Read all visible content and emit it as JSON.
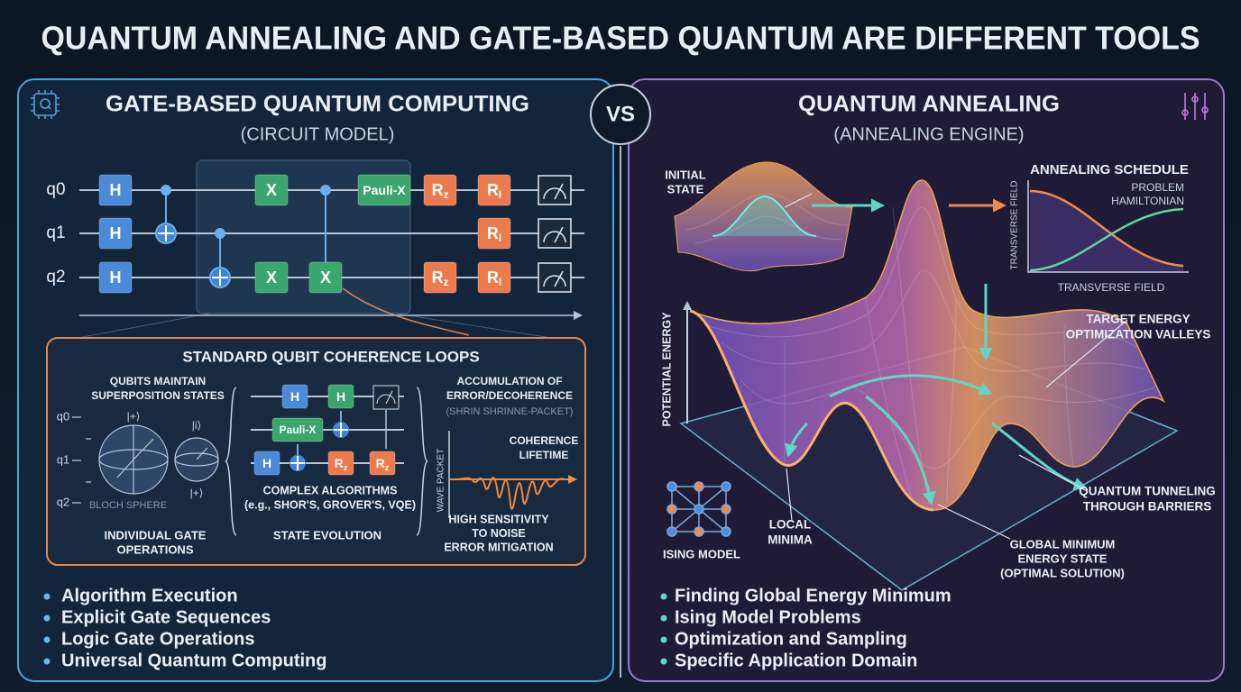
{
  "header": {
    "title": "QUANTUM ANNEALING AND GATE-BASED QUANTUM ARE DIFFERENT TOOLS"
  },
  "vs": "VS",
  "gate_panel": {
    "title": "GATE-BASED QUANTUM COMPUTING",
    "subtitle": "(CIRCUIT MODEL)",
    "circuit": {
      "qubits": [
        "q0",
        "q1",
        "q2"
      ],
      "gates": [
        {
          "label": "H"
        },
        {
          "label": "H"
        },
        {
          "label": "H"
        },
        {
          "label": "X"
        },
        {
          "label": "X"
        },
        {
          "label": "X"
        },
        {
          "label": "Pauli-X"
        },
        {
          "label": "R",
          "sub": "z"
        },
        {
          "label": "R",
          "sub": "z"
        },
        {
          "label": "R",
          "sub": "I"
        },
        {
          "label": "R",
          "sub": "I"
        },
        {
          "label": "R",
          "sub": "I"
        }
      ]
    },
    "inset": {
      "title": "STANDARD QUBIT COHERENCE LOOPS",
      "qubits_caption": [
        "QUBITS MAINTAIN",
        "SUPERPOSITION STATES"
      ],
      "qubits": [
        "q0",
        "q1",
        "q2"
      ],
      "states": [
        "|+⟩",
        "|i⟩",
        "|+⟩"
      ],
      "sphere_label": "BLOCH SPHERE",
      "gate_caption": [
        "INDIVIDUAL GATE",
        "OPERATIONS"
      ],
      "gates": [
        {
          "label": "H"
        },
        {
          "label": "H"
        },
        {
          "label": "Pauli-X"
        },
        {
          "label": "H"
        },
        {
          "label": "R",
          "sub": "z"
        },
        {
          "label": "R",
          "sub": "z"
        }
      ],
      "algorithms": [
        "COMPLEX ALGORITHMS",
        "(e.g., SHOR'S, GROVER'S, VQE)"
      ],
      "evolution": "STATE EVOLUTION",
      "error": [
        "ACCUMULATION OF",
        "ERROR/DECOHERENCE"
      ],
      "error_note": "(SHRIN SHRINNE-PACKET)",
      "wave_label": "WAVE PACKET",
      "coherence": [
        "COHERENCE",
        "LIFETIME"
      ],
      "sensitivity": [
        "HIGH SENSITIVITY",
        "TO NOISE",
        "ERROR MITIGATION"
      ]
    },
    "bullets": [
      "Algorithm Execution",
      "Explicit Gate Sequences",
      "Logic Gate Operations",
      "Universal Quantum Computing"
    ]
  },
  "annealing_panel": {
    "title": "QUANTUM ANNEALING",
    "subtitle": "(ANNEALING ENGINE)",
    "initial_state": [
      "INITIAL",
      "STATE"
    ],
    "schedule": {
      "title": "ANNEALING SCHEDULE",
      "curve_label": [
        "PROBLEM",
        "HAMILTONIAN"
      ],
      "y_label": "TRANSVERSE FIELD",
      "x_label": "TRANSVERSE FIELD"
    },
    "axis_label": "POTENTIAL ENERGY",
    "target": [
      "TARGET ENERGY",
      "OPTIMIZATION VALLEYS"
    ],
    "tunneling": [
      "QUANTUM TUNNELING",
      "THROUGH BARRIERS"
    ],
    "local_minima": [
      "LOCAL",
      "MINIMA"
    ],
    "global_minimum": [
      "GLOBAL MINIMUM",
      "ENERGY STATE",
      "(OPTIMAL SOLUTION)"
    ],
    "ising": "ISING MODEL",
    "bullets": [
      "Finding Global Energy Minimum",
      "Ising Model Problems",
      "Optimization and Sampling",
      "Specific Application Domain"
    ]
  }
}
